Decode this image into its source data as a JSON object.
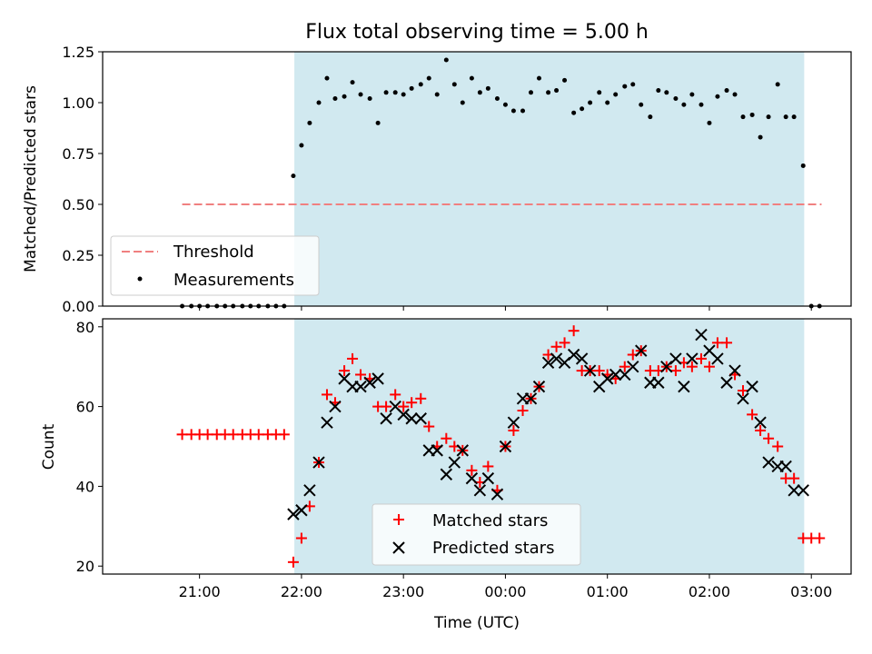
{
  "chart_data": [
    {
      "type": "scatter",
      "title": "Flux total observing time = 5.00 h",
      "xlabel": "",
      "ylabel": "Matched/Predicted stars",
      "x_unit": "hours since 00:00 UTC",
      "xlim": [
        -3.95,
        3.39
      ],
      "ylim": [
        0,
        1.25
      ],
      "yticks": [
        0.0,
        0.25,
        0.5,
        0.75,
        1.0,
        1.25
      ],
      "ytick_labels": [
        "0.00",
        "0.25",
        "0.50",
        "0.75",
        "1.00",
        "1.25"
      ],
      "shaded_region": [
        -2.07,
        2.93
      ],
      "shaded_color": "#d1e9f0",
      "threshold": {
        "name": "Threshold",
        "value": 0.5,
        "x_range": [
          -3.17,
          3.1
        ],
        "color": "#f08080"
      },
      "legend": {
        "position": "lower-left",
        "entries": [
          "Threshold",
          "Measurements"
        ]
      },
      "series": [
        {
          "name": "Measurements",
          "color": "#000000",
          "x": [
            -3.17,
            -3.08,
            -3.0,
            -2.92,
            -2.83,
            -2.75,
            -2.67,
            -2.58,
            -2.5,
            -2.42,
            -2.33,
            -2.25,
            -2.17,
            -2.08,
            -2.0,
            -1.92,
            -1.83,
            -1.75,
            -1.67,
            -1.58,
            -1.5,
            -1.42,
            -1.33,
            -1.25,
            -1.17,
            -1.08,
            -1.0,
            -0.92,
            -0.83,
            -0.75,
            -0.67,
            -0.58,
            -0.5,
            -0.42,
            -0.33,
            -0.25,
            -0.17,
            -0.08,
            0.0,
            0.08,
            0.17,
            0.25,
            0.33,
            0.42,
            0.5,
            0.58,
            0.67,
            0.75,
            0.83,
            0.92,
            1.0,
            1.08,
            1.17,
            1.25,
            1.33,
            1.42,
            1.5,
            1.58,
            1.67,
            1.75,
            1.83,
            1.92,
            2.0,
            2.08,
            2.17,
            2.25,
            2.33,
            2.42,
            2.5,
            2.58,
            2.67,
            2.75,
            2.83,
            2.92,
            3.0,
            3.08
          ],
          "y": [
            0,
            0,
            0,
            0,
            0,
            0,
            0,
            0,
            0,
            0,
            0,
            0,
            0,
            0.64,
            0.79,
            0.9,
            1.0,
            1.12,
            1.02,
            1.03,
            1.1,
            1.04,
            1.02,
            0.9,
            1.05,
            1.05,
            1.04,
            1.07,
            1.09,
            1.12,
            1.04,
            1.21,
            1.09,
            1.0,
            1.12,
            1.05,
            1.07,
            1.02,
            0.99,
            0.96,
            0.96,
            1.05,
            1.12,
            1.05,
            1.06,
            1.11,
            0.95,
            0.97,
            1.0,
            1.05,
            1.0,
            1.04,
            1.08,
            1.09,
            0.99,
            0.93,
            1.06,
            1.05,
            1.02,
            0.99,
            1.04,
            0.99,
            0.9,
            1.03,
            1.06,
            1.04,
            0.93,
            0.94,
            0.83,
            0.93,
            1.09,
            0.93,
            0.93,
            0.69,
            0,
            0
          ]
        }
      ]
    },
    {
      "type": "scatter",
      "title": "",
      "xlabel": "Time (UTC)",
      "ylabel": "Count",
      "x_unit": "hours since 00:00 UTC",
      "xlim": [
        -3.95,
        3.39
      ],
      "ylim": [
        18,
        82
      ],
      "xticks": [
        -3,
        -2,
        -1,
        0,
        1,
        2,
        3
      ],
      "xtick_labels": [
        "21:00",
        "22:00",
        "23:00",
        "00:00",
        "01:00",
        "02:00",
        "03:00"
      ],
      "yticks": [
        20,
        40,
        60,
        80
      ],
      "ytick_labels": [
        "20",
        "40",
        "60",
        "80"
      ],
      "shaded_region": [
        -2.07,
        2.93
      ],
      "shaded_color": "#d1e9f0",
      "legend": {
        "position": "lower-center",
        "entries": [
          "Matched stars",
          "Predicted stars"
        ]
      },
      "series": [
        {
          "name": "Matched stars",
          "marker": "plus",
          "color": "#ff0000",
          "x": [
            -3.17,
            -3.08,
            -3.0,
            -2.92,
            -2.83,
            -2.75,
            -2.67,
            -2.58,
            -2.5,
            -2.42,
            -2.33,
            -2.25,
            -2.17,
            -2.08,
            -2.0,
            -1.92,
            -1.83,
            -1.75,
            -1.67,
            -1.58,
            -1.5,
            -1.42,
            -1.33,
            -1.25,
            -1.17,
            -1.08,
            -1.0,
            -0.92,
            -0.83,
            -0.75,
            -0.67,
            -0.58,
            -0.5,
            -0.42,
            -0.33,
            -0.25,
            -0.17,
            -0.08,
            0.0,
            0.08,
            0.17,
            0.25,
            0.33,
            0.42,
            0.5,
            0.58,
            0.67,
            0.75,
            0.83,
            0.92,
            1.0,
            1.08,
            1.17,
            1.25,
            1.33,
            1.42,
            1.5,
            1.58,
            1.67,
            1.75,
            1.83,
            1.92,
            2.0,
            2.08,
            2.17,
            2.25,
            2.33,
            2.42,
            2.5,
            2.58,
            2.67,
            2.75,
            2.83,
            2.92,
            3.0,
            3.08
          ],
          "y": [
            53,
            53,
            53,
            53,
            53,
            53,
            53,
            53,
            53,
            53,
            53,
            53,
            53,
            21,
            27,
            35,
            46,
            63,
            61,
            69,
            72,
            68,
            67,
            60,
            60,
            63,
            60,
            61,
            62,
            55,
            50,
            52,
            50,
            49,
            44,
            41,
            45,
            39,
            50,
            54,
            59,
            62,
            65,
            73,
            75,
            76,
            79,
            69,
            69,
            69,
            68,
            67,
            70,
            73,
            74,
            69,
            69,
            70,
            69,
            71,
            70,
            72,
            70,
            76,
            76,
            68,
            64,
            58,
            54,
            52,
            50,
            42,
            42,
            27,
            27,
            27
          ]
        },
        {
          "name": "Predicted stars",
          "marker": "cross",
          "color": "#000000",
          "x": [
            -2.08,
            -2.0,
            -1.92,
            -1.83,
            -1.75,
            -1.67,
            -1.58,
            -1.5,
            -1.42,
            -1.33,
            -1.25,
            -1.17,
            -1.08,
            -1.0,
            -0.92,
            -0.83,
            -0.75,
            -0.67,
            -0.58,
            -0.5,
            -0.42,
            -0.33,
            -0.25,
            -0.17,
            -0.08,
            0.0,
            0.08,
            0.17,
            0.25,
            0.33,
            0.42,
            0.5,
            0.58,
            0.67,
            0.75,
            0.83,
            0.92,
            1.0,
            1.08,
            1.17,
            1.25,
            1.33,
            1.42,
            1.5,
            1.58,
            1.67,
            1.75,
            1.83,
            1.92,
            2.0,
            2.08,
            2.17,
            2.25,
            2.33,
            2.42,
            2.5,
            2.58,
            2.67,
            2.75,
            2.83,
            2.92
          ],
          "y": [
            33,
            34,
            39,
            46,
            56,
            60,
            67,
            65,
            65,
            66,
            67,
            57,
            60,
            58,
            57,
            57,
            49,
            49,
            43,
            46,
            49,
            42,
            39,
            42,
            38,
            50,
            56,
            62,
            62,
            65,
            71,
            72,
            71,
            73,
            72,
            69,
            65,
            67,
            68,
            68,
            70,
            74,
            66,
            66,
            70,
            72,
            65,
            72,
            78,
            74,
            72,
            66,
            69,
            62,
            65,
            56,
            46,
            45,
            45,
            39,
            39
          ]
        }
      ]
    }
  ]
}
